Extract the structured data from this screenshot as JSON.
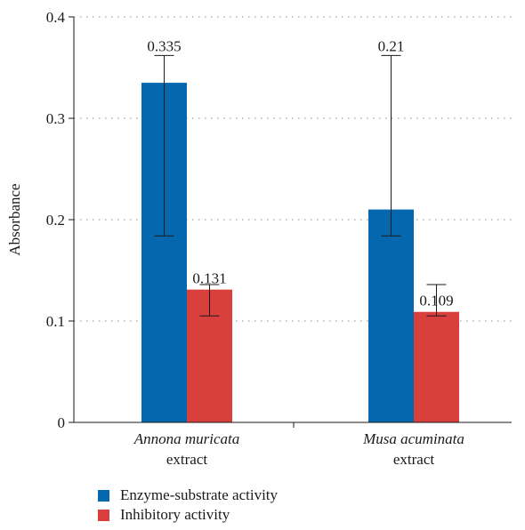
{
  "chart_data": {
    "type": "bar",
    "ylabel": "Absorbance",
    "ylim": [
      0,
      0.4
    ],
    "yticks": [
      "0",
      "0.1",
      "0.2",
      "0.3",
      "0.4"
    ],
    "ytick_values": [
      0,
      0.1,
      0.2,
      0.3,
      0.4
    ],
    "grid": "horizontal dotted",
    "categories": [
      {
        "name": "Annona muricata",
        "suffix": "extract"
      },
      {
        "name": "Musa acuminata",
        "suffix": "extract"
      }
    ],
    "series": [
      {
        "name": "Enzyme-substrate activity",
        "color": "#0568ae",
        "values": [
          0.335,
          0.21
        ],
        "labels": [
          "0.335",
          "0.21"
        ],
        "error_low": [
          0.184,
          0.184
        ],
        "error_high": [
          0.362,
          0.362
        ]
      },
      {
        "name": "Inhibitory activity",
        "color": "#d93f3c",
        "values": [
          0.131,
          0.109
        ],
        "labels": [
          "0.131",
          "0.109"
        ],
        "error_low": [
          0.105,
          0.105
        ],
        "error_high": [
          0.136,
          0.136
        ]
      }
    ],
    "legend_position": "bottom-left"
  }
}
